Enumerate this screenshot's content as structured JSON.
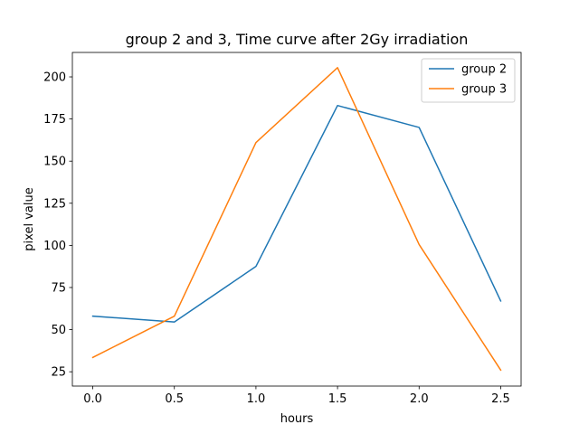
{
  "chart_data": {
    "type": "line",
    "title": "group 2 and 3, Time curve after 2Gy irradiation",
    "xlabel": "hours",
    "ylabel": "pixel value",
    "x": [
      0.0,
      0.5,
      1.0,
      1.5,
      2.0,
      2.5
    ],
    "xlim": [
      -0.125,
      2.625
    ],
    "ylim": [
      16.5,
      214.5
    ],
    "xticks": [
      0.0,
      0.5,
      1.0,
      1.5,
      2.0,
      2.5
    ],
    "xtick_labels": [
      "0.0",
      "0.5",
      "1.0",
      "1.5",
      "2.0",
      "2.5"
    ],
    "yticks": [
      25,
      50,
      75,
      100,
      125,
      150,
      175,
      200
    ],
    "ytick_labels": [
      "25",
      "50",
      "75",
      "100",
      "125",
      "150",
      "175",
      "200"
    ],
    "grid": false,
    "legend_position": "top-right",
    "series": [
      {
        "name": "group 2",
        "color": "#1f77b4",
        "values": [
          58,
          54.5,
          87.5,
          183,
          170,
          67
        ]
      },
      {
        "name": "group 3",
        "color": "#ff7f0e",
        "values": [
          33.5,
          58,
          161,
          205.5,
          100.5,
          26
        ]
      }
    ]
  }
}
